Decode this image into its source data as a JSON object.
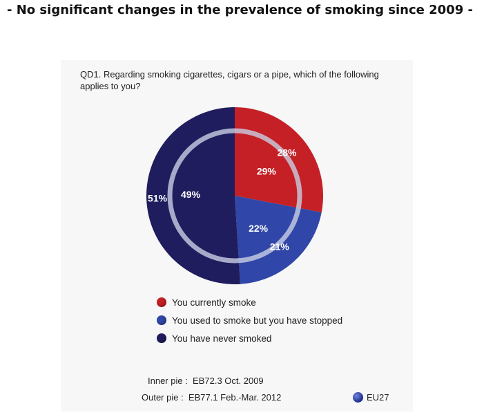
{
  "headline": "- No significant changes in the prevalence of smoking since 2009 -",
  "question": "QD1. Regarding smoking cigarettes, cigars or a pipe, which of the following applies to you?",
  "chart_data": {
    "type": "pie",
    "title": "",
    "categories": [
      "You currently smoke",
      "You used to smoke but you have stopped",
      "You have never smoked"
    ],
    "colors": [
      "#c42026",
      "#3046a8",
      "#1f1d5e"
    ],
    "series": [
      {
        "name": "Outer pie",
        "values": [
          28,
          21,
          51
        ],
        "labels": [
          "28%",
          "21%",
          "51%"
        ]
      },
      {
        "name": "Inner pie",
        "values": [
          29,
          22,
          49
        ],
        "labels": [
          "29%",
          "22%",
          "49%"
        ]
      }
    ],
    "legend_placement": "bottom"
  },
  "legend": [
    {
      "label": "You currently smoke",
      "color": "#c42026"
    },
    {
      "label": "You used to smoke but you have stopped",
      "color": "#3046a8"
    },
    {
      "label": "You have never smoked",
      "color": "#1f1d5e"
    }
  ],
  "source": {
    "inner": "Inner pie :  EB72.3 Oct. 2009",
    "outer": "Outer pie :  EB77.1 Feb.-Mar. 2012"
  },
  "badge": {
    "label": "EU27",
    "icon": "eu-globe-icon"
  }
}
